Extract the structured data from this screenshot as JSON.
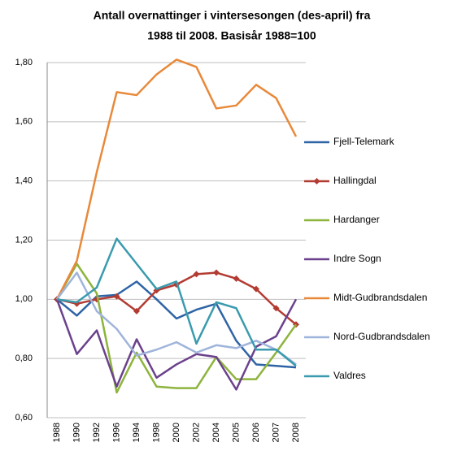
{
  "chart_data": {
    "type": "line",
    "title": "Antall overnattinger i vintersesongen (des-april) fra 1988 til 2008. Basisår 1988=100",
    "title_lines": [
      "Antall overnattinger i vintersesongen (des-april) fra",
      "1988 til 2008. Basisår 1988=100"
    ],
    "categories": [
      "1988",
      "1990",
      "1992",
      "1996",
      "1994",
      "1998",
      "2000",
      "2002",
      "2004",
      "2005",
      "2006",
      "2007",
      "2008"
    ],
    "series": [
      {
        "name": "Fjell-Telemark",
        "color": "#2e64a6",
        "values": [
          1.0,
          0.945,
          1.01,
          1.015,
          1.06,
          1.0,
          0.935,
          0.965,
          0.985,
          0.86,
          0.78,
          0.775,
          0.77
        ]
      },
      {
        "name": "Hallingdal",
        "color": "#b23b32",
        "marker": "diamond",
        "values": [
          1.0,
          0.985,
          1.0,
          1.01,
          0.96,
          1.03,
          1.05,
          1.085,
          1.09,
          1.07,
          1.035,
          0.97,
          0.915
        ]
      },
      {
        "name": "Hardanger",
        "color": "#8db43c",
        "values": [
          1.0,
          1.12,
          1.02,
          0.685,
          0.82,
          0.705,
          0.7,
          0.7,
          0.805,
          0.73,
          0.73,
          0.82,
          0.915
        ]
      },
      {
        "name": "Indre Sogn",
        "color": "#6b418c",
        "values": [
          1.0,
          0.815,
          0.895,
          0.705,
          0.865,
          0.735,
          0.78,
          0.815,
          0.805,
          0.695,
          0.84,
          0.875,
          1.0
        ]
      },
      {
        "name": "Midt-Gudbrandsdalen",
        "color": "#e8893a",
        "values": [
          1.0,
          1.13,
          1.43,
          1.7,
          1.69,
          1.76,
          1.81,
          1.785,
          1.645,
          1.655,
          1.725,
          1.68,
          1.55
        ]
      },
      {
        "name": "Nord-Gudbrandsdalen",
        "color": "#9fb4da",
        "values": [
          1.0,
          1.09,
          0.96,
          0.9,
          0.81,
          0.83,
          0.855,
          0.82,
          0.845,
          0.835,
          0.86,
          0.83,
          0.78
        ]
      },
      {
        "name": "Valdres",
        "color": "#3a9bae",
        "values": [
          1.0,
          0.99,
          1.04,
          1.205,
          1.12,
          1.035,
          1.06,
          0.85,
          0.99,
          0.97,
          0.83,
          0.83,
          0.775
        ]
      }
    ],
    "ylim": [
      0.6,
      1.8
    ],
    "yticks": [
      {
        "value": 0.6,
        "label": "0,60"
      },
      {
        "value": 0.8,
        "label": "0,80"
      },
      {
        "value": 1.0,
        "label": "1,00"
      },
      {
        "value": 1.2,
        "label": "1,20"
      },
      {
        "value": 1.4,
        "label": "1,40"
      },
      {
        "value": 1.6,
        "label": "1,60"
      },
      {
        "value": 1.8,
        "label": "1,80"
      }
    ],
    "grid": true,
    "legend": "right"
  }
}
